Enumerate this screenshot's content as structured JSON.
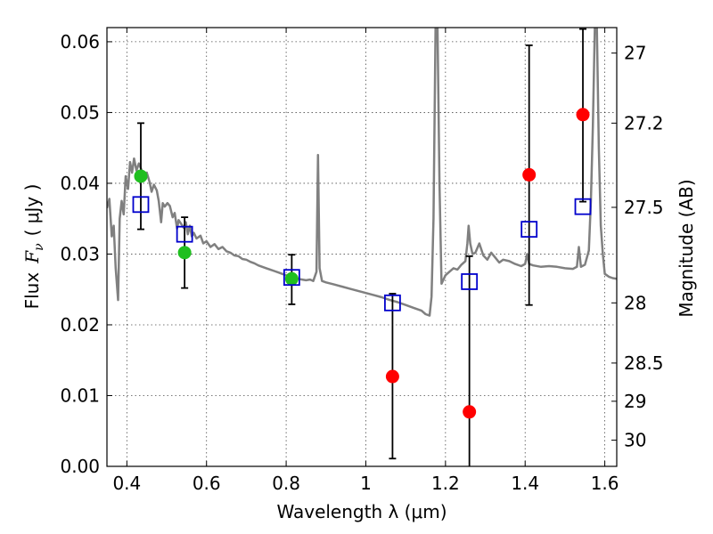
{
  "chart_data": {
    "type": "scatter",
    "xlabel": "Wavelength  λ (μm)",
    "ylabel_text": "Flux",
    "ylabel_symbol": "F",
    "ylabel_symbol_sub": "ν",
    "ylabel_unit": "( μJy )",
    "y2label": "Magnitude (AB)",
    "xlim": [
      0.35,
      1.63
    ],
    "ylim": [
      0.0,
      0.062
    ],
    "x_ticks": [
      0.4,
      0.6,
      0.8,
      1.0,
      1.2,
      1.4,
      1.6
    ],
    "x_tick_labels": [
      "0.4",
      "0.6",
      "0.8",
      "1",
      "1.2",
      "1.4",
      "1.6"
    ],
    "y_ticks": [
      0.0,
      0.01,
      0.02,
      0.03,
      0.04,
      0.05,
      0.06
    ],
    "y_tick_labels": [
      "0.00",
      "0.01",
      "0.02",
      "0.03",
      "0.04",
      "0.05",
      "0.06"
    ],
    "y2_ticks": [
      {
        "label": "27",
        "flux": 0.0584
      },
      {
        "label": "27.2",
        "flux": 0.0485
      },
      {
        "label": "27.5",
        "flux": 0.0366
      },
      {
        "label": "28",
        "flux": 0.0231
      },
      {
        "label": "28.5",
        "flux": 0.0146
      },
      {
        "label": "29",
        "flux": 0.0092
      },
      {
        "label": "30",
        "flux": 0.0037
      }
    ],
    "grid": true,
    "series": [
      {
        "marker": "circle",
        "color": "#1fbf1f",
        "points": [
          {
            "x": 0.435,
            "y": 0.041
          },
          {
            "x": 0.545,
            "y": 0.0302
          },
          {
            "x": 0.814,
            "y": 0.0265
          }
        ]
      },
      {
        "marker": "circle",
        "color": "#ff0000",
        "points": [
          {
            "x": 1.067,
            "y": 0.0127
          },
          {
            "x": 1.26,
            "y": 0.0077
          },
          {
            "x": 1.41,
            "y": 0.0412
          },
          {
            "x": 1.545,
            "y": 0.0497
          }
        ]
      },
      {
        "marker": "open-square",
        "color": "#0000cc",
        "points": [
          {
            "x": 0.435,
            "y": 0.037
          },
          {
            "x": 0.545,
            "y": 0.0328
          },
          {
            "x": 0.814,
            "y": 0.0267
          },
          {
            "x": 1.067,
            "y": 0.0231
          },
          {
            "x": 1.26,
            "y": 0.0261
          },
          {
            "x": 1.41,
            "y": 0.0335
          },
          {
            "x": 1.545,
            "y": 0.0367
          }
        ]
      }
    ],
    "error_bars": [
      {
        "x": 0.435,
        "low": 0.0335,
        "high": 0.0485
      },
      {
        "x": 0.545,
        "low": 0.0252,
        "high": 0.0352
      },
      {
        "x": 0.814,
        "low": 0.0229,
        "high": 0.0299
      },
      {
        "x": 1.067,
        "low": 0.0011,
        "high": 0.0244
      },
      {
        "x": 1.26,
        "low": 0.0,
        "high": 0.0297
      },
      {
        "x": 1.41,
        "low": 0.0228,
        "high": 0.0595
      },
      {
        "x": 1.545,
        "low": 0.0374,
        "high": 0.0618
      }
    ],
    "sed_model": {
      "color": "#808080",
      "points": [
        [
          0.35,
          0.0365
        ],
        [
          0.356,
          0.0378
        ],
        [
          0.362,
          0.0325
        ],
        [
          0.367,
          0.034
        ],
        [
          0.372,
          0.028
        ],
        [
          0.378,
          0.0235
        ],
        [
          0.382,
          0.035
        ],
        [
          0.387,
          0.0375
        ],
        [
          0.392,
          0.0356
        ],
        [
          0.397,
          0.041
        ],
        [
          0.403,
          0.0392
        ],
        [
          0.408,
          0.043
        ],
        [
          0.413,
          0.0415
        ],
        [
          0.418,
          0.0435
        ],
        [
          0.424,
          0.0418
        ],
        [
          0.43,
          0.0428
        ],
        [
          0.436,
          0.042
        ],
        [
          0.442,
          0.0412
        ],
        [
          0.45,
          0.0415
        ],
        [
          0.457,
          0.0402
        ],
        [
          0.462,
          0.0388
        ],
        [
          0.468,
          0.0398
        ],
        [
          0.475,
          0.039
        ],
        [
          0.48,
          0.0375
        ],
        [
          0.486,
          0.0345
        ],
        [
          0.49,
          0.0372
        ],
        [
          0.495,
          0.0367
        ],
        [
          0.502,
          0.0372
        ],
        [
          0.508,
          0.0368
        ],
        [
          0.515,
          0.0352
        ],
        [
          0.52,
          0.0358
        ],
        [
          0.526,
          0.0336
        ],
        [
          0.53,
          0.0348
        ],
        [
          0.537,
          0.0342
        ],
        [
          0.543,
          0.0337
        ],
        [
          0.548,
          0.0345
        ],
        [
          0.553,
          0.0328
        ],
        [
          0.558,
          0.034
        ],
        [
          0.563,
          0.0325
        ],
        [
          0.568,
          0.033
        ],
        [
          0.575,
          0.0322
        ],
        [
          0.585,
          0.0326
        ],
        [
          0.592,
          0.0315
        ],
        [
          0.6,
          0.0318
        ],
        [
          0.61,
          0.031
        ],
        [
          0.62,
          0.0314
        ],
        [
          0.63,
          0.0307
        ],
        [
          0.64,
          0.031
        ],
        [
          0.65,
          0.0304
        ],
        [
          0.66,
          0.0302
        ],
        [
          0.67,
          0.0298
        ],
        [
          0.68,
          0.0297
        ],
        [
          0.69,
          0.0293
        ],
        [
          0.7,
          0.0292
        ],
        [
          0.71,
          0.0289
        ],
        [
          0.72,
          0.0287
        ],
        [
          0.73,
          0.0284
        ],
        [
          0.74,
          0.0282
        ],
        [
          0.75,
          0.028
        ],
        [
          0.76,
          0.0278
        ],
        [
          0.77,
          0.0276
        ],
        [
          0.78,
          0.0274
        ],
        [
          0.79,
          0.0272
        ],
        [
          0.8,
          0.027
        ],
        [
          0.81,
          0.0268
        ],
        [
          0.82,
          0.0266
        ],
        [
          0.83,
          0.0265
        ],
        [
          0.84,
          0.0264
        ],
        [
          0.85,
          0.0263
        ],
        [
          0.86,
          0.0264
        ],
        [
          0.868,
          0.0262
        ],
        [
          0.876,
          0.0275
        ],
        [
          0.88,
          0.044
        ],
        [
          0.884,
          0.028
        ],
        [
          0.89,
          0.0262
        ],
        [
          0.9,
          0.026
        ],
        [
          0.92,
          0.0257
        ],
        [
          0.94,
          0.0254
        ],
        [
          0.96,
          0.0251
        ],
        [
          0.98,
          0.0248
        ],
        [
          1.0,
          0.0245
        ],
        [
          1.02,
          0.0242
        ],
        [
          1.04,
          0.0239
        ],
        [
          1.06,
          0.0235
        ],
        [
          1.08,
          0.0232
        ],
        [
          1.1,
          0.0228
        ],
        [
          1.12,
          0.0224
        ],
        [
          1.14,
          0.022
        ],
        [
          1.15,
          0.0215
        ],
        [
          1.16,
          0.0213
        ],
        [
          1.165,
          0.024
        ],
        [
          1.17,
          0.035
        ],
        [
          1.175,
          0.062
        ],
        [
          1.18,
          0.062
        ],
        [
          1.185,
          0.04
        ],
        [
          1.19,
          0.0258
        ],
        [
          1.2,
          0.027
        ],
        [
          1.21,
          0.0275
        ],
        [
          1.22,
          0.028
        ],
        [
          1.23,
          0.0278
        ],
        [
          1.24,
          0.0285
        ],
        [
          1.25,
          0.029
        ],
        [
          1.255,
          0.0315
        ],
        [
          1.258,
          0.034
        ],
        [
          1.262,
          0.0315
        ],
        [
          1.268,
          0.03
        ],
        [
          1.275,
          0.0302
        ],
        [
          1.285,
          0.0315
        ],
        [
          1.295,
          0.0298
        ],
        [
          1.305,
          0.0292
        ],
        [
          1.315,
          0.0302
        ],
        [
          1.325,
          0.0295
        ],
        [
          1.335,
          0.0288
        ],
        [
          1.345,
          0.0292
        ],
        [
          1.36,
          0.029
        ],
        [
          1.375,
          0.0286
        ],
        [
          1.39,
          0.0283
        ],
        [
          1.4,
          0.0286
        ],
        [
          1.405,
          0.03
        ],
        [
          1.41,
          0.0286
        ],
        [
          1.42,
          0.0284
        ],
        [
          1.44,
          0.0282
        ],
        [
          1.46,
          0.0283
        ],
        [
          1.48,
          0.0282
        ],
        [
          1.5,
          0.028
        ],
        [
          1.52,
          0.0279
        ],
        [
          1.53,
          0.0282
        ],
        [
          1.535,
          0.031
        ],
        [
          1.54,
          0.0282
        ],
        [
          1.55,
          0.0285
        ],
        [
          1.56,
          0.0305
        ],
        [
          1.565,
          0.0375
        ],
        [
          1.57,
          0.048
        ],
        [
          1.575,
          0.062
        ],
        [
          1.58,
          0.062
        ],
        [
          1.585,
          0.045
        ],
        [
          1.59,
          0.034
        ],
        [
          1.595,
          0.03
        ],
        [
          1.6,
          0.0272
        ],
        [
          1.61,
          0.0268
        ],
        [
          1.62,
          0.0266
        ],
        [
          1.63,
          0.0265
        ]
      ]
    }
  }
}
